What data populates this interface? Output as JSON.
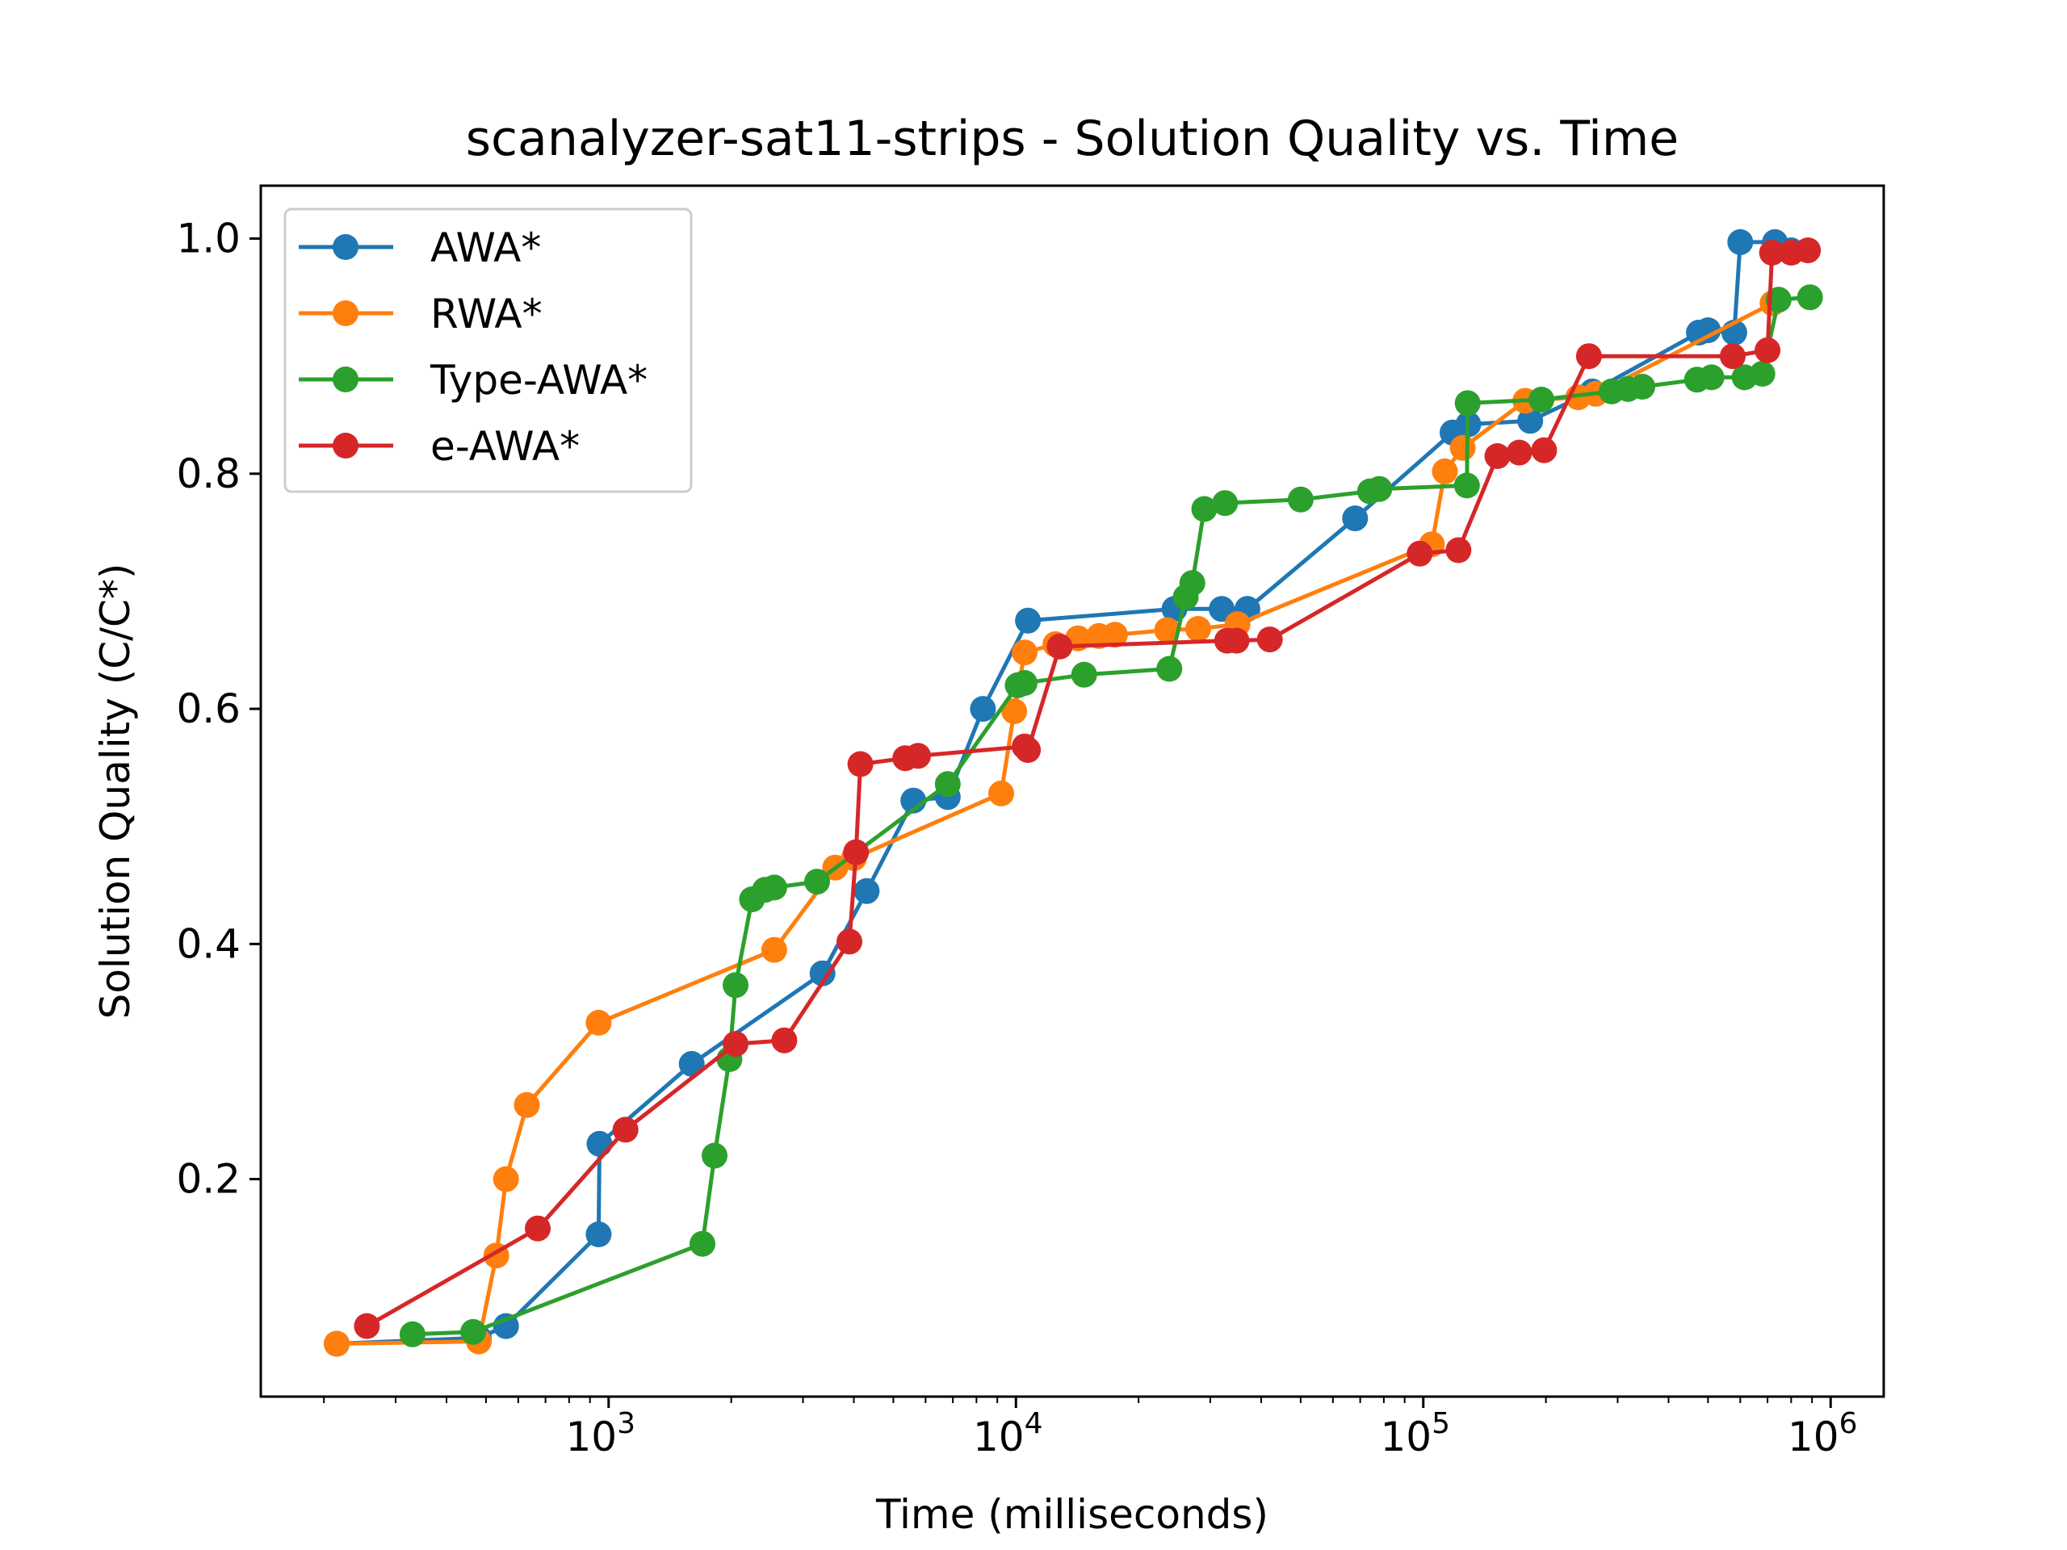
{
  "chart_data": {
    "type": "line",
    "title": "scanalyzer-sat11-strips - Solution Quality vs. Time",
    "xlabel": "Time (milliseconds)",
    "ylabel": "Solution Quality (C/C*)",
    "xscale": "log",
    "xlim": [
      140,
      1350000
    ],
    "ylim": [
      0.015,
      1.045
    ],
    "x_major_ticks": [
      {
        "value": 1000,
        "base": "10",
        "exp": "3"
      },
      {
        "value": 10000,
        "base": "10",
        "exp": "4"
      },
      {
        "value": 100000,
        "base": "10",
        "exp": "5"
      },
      {
        "value": 1000000,
        "base": "10",
        "exp": "6"
      }
    ],
    "y_ticks": [
      {
        "value": 0.2,
        "label": "0.2"
      },
      {
        "value": 0.4,
        "label": "0.4"
      },
      {
        "value": 0.6,
        "label": "0.6"
      },
      {
        "value": 0.8,
        "label": "0.8"
      },
      {
        "value": 1.0,
        "label": "1.0"
      }
    ],
    "legend_position": "upper-left",
    "series": [
      {
        "name": "AWA*",
        "color": "#1f77b4",
        "x": [
          215,
          480,
          560,
          945,
          950,
          1600,
          3350,
          4300,
          5600,
          6800,
          8300,
          10700,
          24500,
          32000,
          37000,
          68000,
          118000,
          129000,
          183000,
          260000,
          475000,
          500000,
          580000,
          600000,
          730000,
          800000
        ],
        "y": [
          0.06,
          0.065,
          0.075,
          0.153,
          0.23,
          0.298,
          0.375,
          0.445,
          0.522,
          0.525,
          0.6,
          0.675,
          0.685,
          0.685,
          0.685,
          0.762,
          0.835,
          0.842,
          0.845,
          0.87,
          0.92,
          0.922,
          0.92,
          0.997,
          0.997,
          0.99
        ]
      },
      {
        "name": "RWA*",
        "color": "#ff7f0e",
        "x": [
          215,
          480,
          530,
          560,
          630,
          945,
          2550,
          3600,
          4000,
          9200,
          9900,
          10500,
          12500,
          14200,
          16000,
          17500,
          23500,
          28000,
          35000,
          105000,
          113000,
          125000,
          178000,
          240000,
          265000,
          720000
        ],
        "y": [
          0.06,
          0.062,
          0.135,
          0.2,
          0.263,
          0.333,
          0.395,
          0.465,
          0.473,
          0.528,
          0.598,
          0.648,
          0.655,
          0.66,
          0.662,
          0.663,
          0.667,
          0.668,
          0.672,
          0.74,
          0.802,
          0.822,
          0.862,
          0.865,
          0.868,
          0.945
        ]
      },
      {
        "name": "Type-AWA*",
        "color": "#2ca02c",
        "x": [
          330,
          465,
          1700,
          1820,
          1980,
          2050,
          2250,
          2420,
          2550,
          3250,
          6800,
          10100,
          10500,
          14700,
          23800,
          26100,
          27100,
          29000,
          32600,
          50000,
          74000,
          78000,
          128000,
          128500,
          195000,
          290000,
          318000,
          345000,
          470000,
          510000,
          615000,
          680000,
          745000,
          890000
        ],
        "y": [
          0.068,
          0.07,
          0.145,
          0.22,
          0.302,
          0.365,
          0.438,
          0.446,
          0.448,
          0.453,
          0.536,
          0.62,
          0.622,
          0.629,
          0.634,
          0.695,
          0.707,
          0.77,
          0.775,
          0.778,
          0.785,
          0.787,
          0.79,
          0.86,
          0.863,
          0.87,
          0.872,
          0.874,
          0.88,
          0.882,
          0.882,
          0.885,
          0.948,
          0.95
        ]
      },
      {
        "name": "e-AWA*",
        "color": "#d62728",
        "x": [
          255,
          670,
          1100,
          2050,
          2700,
          3900,
          4050,
          4150,
          5350,
          5750,
          10500,
          10700,
          12800,
          33000,
          34800,
          42000,
          98000,
          122000,
          152000,
          172000,
          198000,
          255000,
          575000,
          700000,
          718000,
          800000,
          880000
        ],
        "y": [
          0.075,
          0.158,
          0.242,
          0.315,
          0.318,
          0.402,
          0.478,
          0.553,
          0.558,
          0.56,
          0.568,
          0.565,
          0.653,
          0.658,
          0.658,
          0.659,
          0.732,
          0.735,
          0.815,
          0.818,
          0.82,
          0.9,
          0.9,
          0.905,
          0.988,
          0.988,
          0.99
        ]
      }
    ]
  }
}
